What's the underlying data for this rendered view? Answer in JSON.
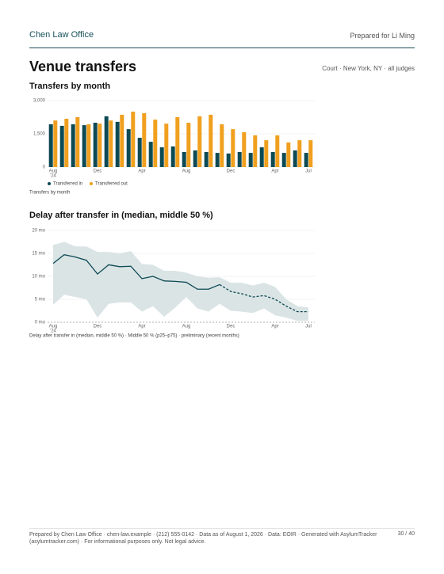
{
  "header": {
    "brand": "Chen Law Office",
    "prepared_for": "Prepared for Li Ming"
  },
  "page_title": "Venue transfers",
  "page_subtitle": "Court · New York, NY · all judges",
  "chart_data": [
    {
      "type": "bar",
      "title": "Transfers by month",
      "caption": "Transfers by month",
      "categories": [
        "Aug",
        null,
        null,
        null,
        "Dec",
        null,
        null,
        null,
        "Apr",
        null,
        null,
        null,
        "Aug",
        null,
        null,
        null,
        "Dec",
        null,
        null,
        null,
        "Apr",
        null,
        null,
        "Jul"
      ],
      "x_year_label": "'24",
      "series": [
        {
          "name": "Transferred in",
          "color": "#0d4a54",
          "values": [
            1930,
            1860,
            1930,
            1890,
            2000,
            2290,
            2040,
            1710,
            1320,
            1140,
            890,
            930,
            680,
            750,
            680,
            640,
            610,
            680,
            640,
            890,
            680,
            640,
            750,
            640
          ]
        },
        {
          "name": "Transferred out",
          "color": "#f0a01e",
          "values": [
            2100,
            2180,
            2250,
            1930,
            1960,
            2100,
            2360,
            2500,
            2430,
            2140,
            1960,
            2250,
            2000,
            2290,
            2360,
            1930,
            1710,
            1570,
            1430,
            1210,
            1430,
            1110,
            1210,
            1210
          ]
        }
      ],
      "ylim": [
        0,
        3000
      ],
      "yticks": [
        0,
        {
          "value": 1500,
          "label": "1,500"
        },
        {
          "value": 3000,
          "label": "3,000"
        }
      ],
      "grid": true,
      "legend": "bottom-left"
    },
    {
      "type": "line",
      "title": "Delay after transfer in (median, middle 50 %)",
      "caption": "Delay after transfer in (median, middle 50 %) · Middle 50 % (p25–p75) · preliminary (recent months)",
      "categories": [
        "Aug",
        null,
        null,
        null,
        "Dec",
        null,
        null,
        null,
        "Apr",
        null,
        null,
        null,
        "Aug",
        null,
        null,
        null,
        "Dec",
        null,
        null,
        null,
        "Apr",
        null,
        null,
        "Jul"
      ],
      "x_year_label": "'24",
      "band": {
        "color": "#d3dfe1",
        "upper": [
          16.8,
          17.5,
          16.5,
          16.5,
          15.3,
          15.3,
          15.0,
          15.5,
          12.7,
          12.5,
          11.2,
          11.2,
          10.8,
          10.0,
          9.7,
          9.8,
          8.6,
          8.6,
          8.0,
          8.6,
          7.7,
          5.0,
          3.5,
          3.2
        ],
        "lower": [
          3.8,
          6.0,
          5.5,
          5.0,
          1.0,
          4.0,
          4.3,
          4.3,
          2.3,
          3.5,
          1.2,
          3.2,
          5.5,
          3.0,
          2.3,
          4.0,
          2.5,
          2.3,
          2.0,
          3.0,
          1.5,
          1.0,
          0.3,
          0.3
        ]
      },
      "series": [
        {
          "color": "#0d4a54",
          "dashed": false,
          "values": [
            12.8,
            14.7,
            14.2,
            13.5,
            10.5,
            12.5,
            12.1,
            12.2,
            9.5,
            10.0,
            9.0,
            8.9,
            8.7,
            7.2,
            7.2,
            8.2,
            null,
            null,
            null,
            null,
            null,
            null,
            null,
            null
          ]
        },
        {
          "color": "#0d4a54",
          "dashed": true,
          "values": [
            null,
            null,
            null,
            null,
            null,
            null,
            null,
            null,
            null,
            null,
            null,
            null,
            null,
            null,
            null,
            8.2,
            6.7,
            6.2,
            5.5,
            5.8,
            5.0,
            3.5,
            2.3,
            2.3
          ]
        }
      ],
      "ylim": [
        0,
        20
      ],
      "yticks": [
        {
          "value": 0,
          "label": "0 mo"
        },
        {
          "value": 5,
          "label": "5 mo"
        },
        {
          "value": 10,
          "label": "10 mo"
        },
        {
          "value": 15,
          "label": "15 mo"
        },
        {
          "value": 20,
          "label": "20 mo"
        }
      ],
      "grid": true
    }
  ],
  "footer": {
    "text": "Prepared by Chen Law Office · chen-law.example · (212) 555-0142 · Data as of August 1, 2026 · Data: EOIR · Generated with AsylumTracker (asylumtracker.com) · For informational purposes only. Not legal advice.",
    "page": "30 / 40"
  }
}
